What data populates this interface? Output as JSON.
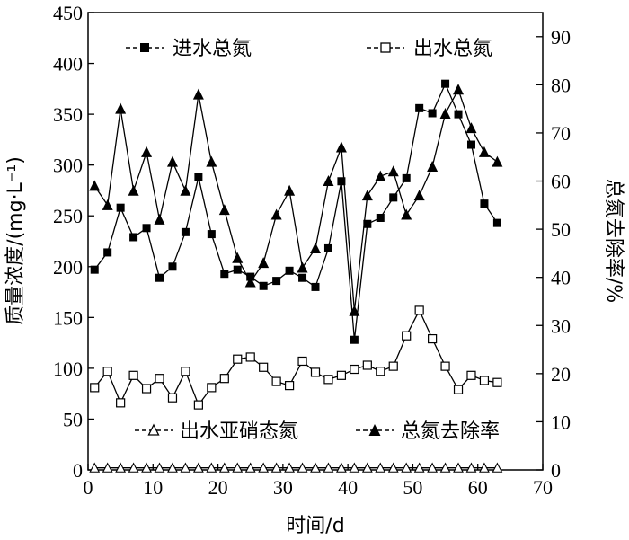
{
  "chart_data": {
    "type": "line",
    "xlabel": "时间/d",
    "ylabel_left": "质量浓度/(mg·L⁻¹)",
    "ylabel_right": "总氮去除率/%",
    "xlim": [
      0,
      70
    ],
    "ylim_left": [
      0,
      450
    ],
    "ylim_right": [
      0,
      95
    ],
    "x_ticks": [
      0,
      10,
      20,
      30,
      40,
      50,
      60,
      70
    ],
    "y_ticks_left": [
      0,
      50,
      100,
      150,
      200,
      250,
      300,
      350,
      400,
      450
    ],
    "y_ticks_right": [
      0,
      10,
      20,
      30,
      40,
      50,
      60,
      70,
      80,
      90
    ],
    "grid": false,
    "series": [
      {
        "name": "进水总氮",
        "axis": "left",
        "marker": "square-filled",
        "x": [
          1,
          3,
          5,
          7,
          9,
          11,
          13,
          15,
          17,
          19,
          21,
          23,
          25,
          27,
          29,
          31,
          33,
          35,
          37,
          39,
          41,
          43,
          45,
          47,
          49,
          51,
          53,
          55,
          57,
          59,
          61,
          63
        ],
        "y": [
          197,
          214,
          258,
          229,
          238,
          189,
          200,
          234,
          288,
          232,
          193,
          197,
          190,
          181,
          186,
          196,
          189,
          180,
          218,
          284,
          128,
          242,
          248,
          268,
          287,
          356,
          351,
          380,
          350,
          320,
          262,
          243
        ]
      },
      {
        "name": "出水总氮",
        "axis": "left",
        "marker": "square-open",
        "x": [
          1,
          3,
          5,
          7,
          9,
          11,
          13,
          15,
          17,
          19,
          21,
          23,
          25,
          27,
          29,
          31,
          33,
          35,
          37,
          39,
          41,
          43,
          45,
          47,
          49,
          51,
          53,
          55,
          57,
          59,
          61,
          63
        ],
        "y": [
          81,
          97,
          66,
          93,
          80,
          90,
          71,
          97,
          64,
          81,
          90,
          109,
          111,
          101,
          87,
          83,
          107,
          96,
          89,
          93,
          99,
          103,
          97,
          102,
          132,
          157,
          129,
          102,
          79,
          93,
          88,
          86
        ]
      },
      {
        "name": "出水亚硝态氮",
        "axis": "left",
        "marker": "triangle-open",
        "x": [
          1,
          3,
          5,
          7,
          9,
          11,
          13,
          15,
          17,
          19,
          21,
          23,
          25,
          27,
          29,
          31,
          33,
          35,
          37,
          39,
          41,
          43,
          45,
          47,
          49,
          51,
          53,
          55,
          57,
          59,
          61,
          63
        ],
        "y": [
          2,
          2,
          2,
          2,
          2,
          2,
          2,
          2,
          2,
          2,
          2,
          2,
          2,
          2,
          2,
          2,
          2,
          2,
          2,
          2,
          2,
          2,
          2,
          2,
          2,
          2,
          2,
          2,
          2,
          2,
          2,
          2
        ]
      },
      {
        "name": "总氮去除率",
        "axis": "right",
        "marker": "triangle-filled",
        "x": [
          1,
          3,
          5,
          7,
          9,
          11,
          13,
          15,
          17,
          19,
          21,
          23,
          25,
          27,
          29,
          31,
          33,
          35,
          37,
          39,
          41,
          43,
          45,
          47,
          49,
          51,
          53,
          55,
          57,
          59,
          61,
          63
        ],
        "y": [
          59,
          55,
          75,
          58,
          66,
          52,
          64,
          58,
          78,
          64,
          54,
          44,
          39,
          43,
          53,
          58,
          42,
          46,
          60,
          67,
          33,
          57,
          61,
          62,
          53,
          57,
          63,
          74,
          79,
          71,
          66,
          64
        ]
      }
    ]
  }
}
